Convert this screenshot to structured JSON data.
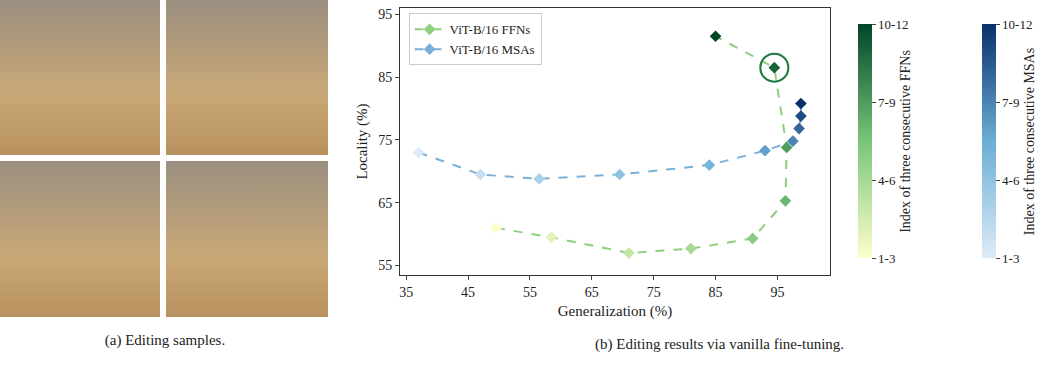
{
  "captions": [
    "(a) Editing samples.",
    "(b) Editing results via vanilla fine-tuning."
  ],
  "chart_data": {
    "type": "scatter",
    "x_label": "Generalization (%)",
    "y_label": "Locality (%)",
    "xlim": [
      34,
      103.5
    ],
    "ylim": [
      53.5,
      96
    ],
    "xticks": [
      35,
      45,
      55,
      65,
      75,
      85,
      95
    ],
    "yticks": [
      55,
      65,
      75,
      85,
      95
    ],
    "grid": false,
    "legend": "upper left",
    "marker": "diamond",
    "line_style": "dashed",
    "series": [
      {
        "name": "ViT-B/16 FFNs",
        "color": "#8fd07e",
        "x": [
          49.5,
          58.5,
          71,
          81,
          91,
          96.3,
          96.5,
          94.5,
          85
        ],
        "values": [
          61,
          59.5,
          57,
          57.7,
          59.3,
          65.3,
          73.8,
          86.5,
          91.5
        ],
        "color_values": [
          1,
          2,
          3,
          4,
          5,
          6,
          7,
          9,
          10
        ],
        "circled_index": 7,
        "colorbar": {
          "title": "Index of three consecutive FFNs",
          "range": [
            1,
            10
          ],
          "ticks": [
            {
              "value": 1,
              "label": "1-3"
            },
            {
              "value": 4,
              "label": "4-6"
            },
            {
              "value": 7,
              "label": "7-9"
            },
            {
              "value": 10,
              "label": "10-12"
            }
          ]
        }
      },
      {
        "name": "ViT-B/16 MSAs",
        "color": "#7ab0d8",
        "x": [
          37,
          47,
          56.5,
          69.5,
          84,
          93,
          97.5,
          98.5,
          98.8,
          98.8
        ],
        "values": [
          73,
          69.5,
          68.8,
          69.5,
          71,
          73.3,
          74.8,
          76.8,
          78.8,
          80.8
        ],
        "color_values": [
          1,
          2,
          3,
          4,
          5,
          6,
          7,
          8,
          9,
          10
        ],
        "colorbar": {
          "title": "Index of three consecutive MSAs",
          "range": [
            1,
            10
          ],
          "ticks": [
            {
              "value": 1,
              "label": "1-3"
            },
            {
              "value": 4,
              "label": "4-6"
            },
            {
              "value": 7,
              "label": "7-9"
            },
            {
              "value": 10,
              "label": "10-12"
            }
          ]
        }
      }
    ]
  }
}
